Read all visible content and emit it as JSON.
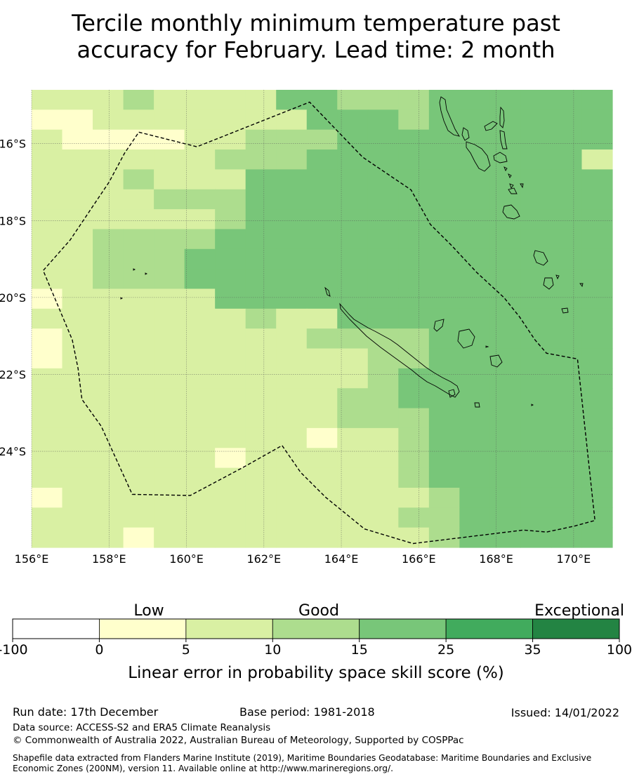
{
  "title_line1": "Tercile monthly minimum temperature past",
  "title_line2": "accuracy for February. Lead time: 2 month",
  "chart_data": {
    "type": "heatmap",
    "region": "New Caledonia and surrounding Pacific",
    "lon_range": [
      156,
      171
    ],
    "lat_range": [
      -26.5,
      -14.6
    ],
    "grid_step_deg": [
      0.833,
      0.556
    ],
    "lon_ticks": [
      156,
      158,
      160,
      162,
      164,
      166,
      168,
      170
    ],
    "lat_ticks": [
      -16,
      -18,
      -20,
      -22,
      -24
    ],
    "lon_tick_labels": [
      "156°E",
      "158°E",
      "160°E",
      "162°E",
      "164°E",
      "166°E",
      "168°E",
      "170°E"
    ],
    "lat_tick_labels": [
      "16°S",
      "18°S",
      "20°S",
      "22°S",
      "24°S"
    ],
    "value_grid_note": "category index per cell (rows north to south, columns west to east): 0 = -100..0, 1 = 0..5, 2 = 5..10, 3 = 10..15, 4 = 15..25, 5 = 25..35, 6 = 35..100",
    "value_grid": [
      "2223222244333444444",
      "1122222224443444444",
      "2111122333444444444",
      "2222223334444444442",
      "2223222444444444444",
      "2222333444444444444",
      "2222223444444444444",
      "2233334444444444444",
      "2233344444444444444",
      "2233344444444444444",
      "1222224444444444444",
      "2222222322444444444",
      "1222222223333444444",
      "1222222222233444444",
      "2222222222234444444",
      "2222222222334444444",
      "2222222222333444444",
      "2222222221223444444",
      "2222221222223444444",
      "2222222222223444444",
      "1222222222222344444",
      "2222222222223344444",
      "2221222222222344444"
    ],
    "eez_boundary": [
      [
        158.77,
        -15.7
      ],
      [
        160.27,
        -16.08
      ],
      [
        163.18,
        -14.92
      ],
      [
        164.55,
        -16.35
      ],
      [
        165.8,
        -17.2
      ],
      [
        166.3,
        -18.1
      ],
      [
        166.85,
        -18.65
      ],
      [
        167.5,
        -19.35
      ],
      [
        168.2,
        -20.0
      ],
      [
        168.6,
        -20.5
      ],
      [
        169.0,
        -21.1
      ],
      [
        169.3,
        -21.45
      ],
      [
        170.1,
        -21.6
      ],
      [
        170.55,
        -25.8
      ],
      [
        170.0,
        -25.95
      ],
      [
        169.3,
        -26.1
      ],
      [
        168.7,
        -26.05
      ],
      [
        165.85,
        -26.4
      ],
      [
        164.6,
        -26.02
      ],
      [
        163.6,
        -25.2
      ],
      [
        162.95,
        -24.55
      ],
      [
        162.47,
        -23.85
      ],
      [
        161.5,
        -24.4
      ],
      [
        160.1,
        -25.15
      ],
      [
        158.6,
        -25.12
      ],
      [
        157.8,
        -23.35
      ],
      [
        157.3,
        -22.65
      ],
      [
        157.2,
        -21.85
      ],
      [
        157.05,
        -21.1
      ],
      [
        156.3,
        -19.3
      ],
      [
        157.0,
        -18.5
      ],
      [
        158.0,
        -17.0
      ],
      [
        158.4,
        -16.25
      ],
      [
        158.77,
        -15.7
      ]
    ]
  },
  "colorbar": {
    "labels": [
      "Low",
      "Good",
      "Exceptional"
    ],
    "ticks": [
      "-100",
      "0",
      "5",
      "10",
      "15",
      "25",
      "35",
      "100"
    ],
    "colors": [
      "#ffffff",
      "#ffffcc",
      "#d9f0a3",
      "#addd8e",
      "#78c679",
      "#41ab5d",
      "#238443"
    ],
    "axis_label": "Linear error in probability space skill score (%)"
  },
  "footer": {
    "run_date": "Run date: 17th December",
    "base_period": "Base period: 1981-2018",
    "issued": "Issued: 14/01/2022",
    "data_source": "Data source: ACCESS-S2 and ERA5 Climate Reanalysis",
    "copyright": "© Commonwealth of Australia 2022, Australian Bureau of Meteorology, Supported by COSPPac",
    "shapefile": "Shapefile data extracted from Flanders Marine Institute (2019), Maritime Boundaries Geodatabase: Maritime Boundaries and Exclusive Economic Zones (200NM), version 11. Available online at http://www.marineregions.org/."
  }
}
